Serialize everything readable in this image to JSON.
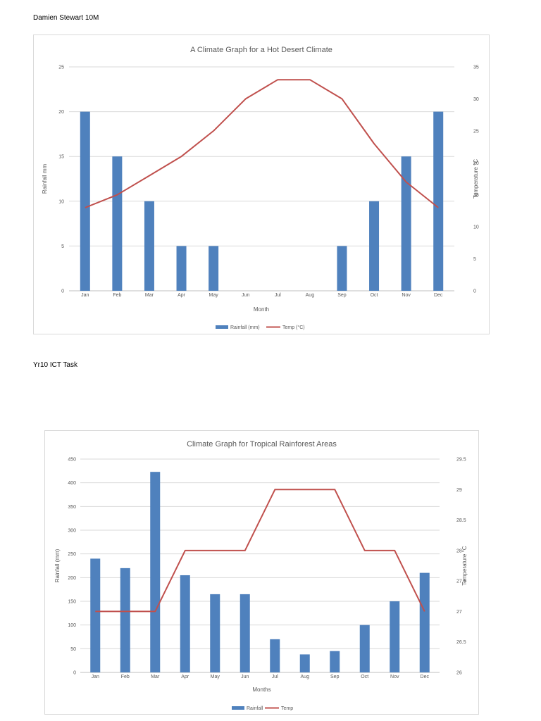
{
  "document": {
    "author_line": "Damien Stewart 10M",
    "task_line": "Yr10 ICT Task"
  },
  "chart_data": [
    {
      "type": "bar",
      "title": "A Climate Graph for a Hot Desert Climate",
      "categories": [
        "Jan",
        "Feb",
        "Mar",
        "Apr",
        "May",
        "Jun",
        "Jul",
        "Aug",
        "Sep",
        "Oct",
        "Nov",
        "Dec"
      ],
      "series": [
        {
          "name": "Rainfall (mm)",
          "type": "bar",
          "axis": "left",
          "color": "#4f81bd",
          "values": [
            20,
            15,
            10,
            5,
            5,
            0,
            0,
            0,
            5,
            10,
            15,
            20
          ]
        },
        {
          "name": "Temp (°C)",
          "type": "line",
          "axis": "right",
          "color": "#c0504d",
          "values": [
            13,
            15,
            18,
            21,
            25,
            30,
            33,
            33,
            30,
            23,
            17,
            13
          ]
        }
      ],
      "xlabel": "Month",
      "ylabel": "Rainfall mm",
      "y2label": "Temperature °C",
      "ylim": [
        0,
        25
      ],
      "yticks": [
        0,
        5,
        10,
        15,
        20,
        25
      ],
      "y2lim": [
        0,
        35
      ],
      "y2ticks": [
        0,
        5,
        10,
        15,
        20,
        25,
        30,
        35
      ],
      "grid": true,
      "legend_position": "bottom"
    },
    {
      "type": "bar",
      "title": "Climate Graph for Tropical Rainforest Areas",
      "categories": [
        "Jan",
        "Feb",
        "Mar",
        "Apr",
        "May",
        "Jun",
        "Jul",
        "Aug",
        "Sep",
        "Oct",
        "Nov",
        "Dec"
      ],
      "series": [
        {
          "name": "Rainfall",
          "type": "bar",
          "axis": "left",
          "color": "#4f81bd",
          "values": [
            240,
            220,
            423,
            205,
            165,
            165,
            70,
            38,
            45,
            100,
            150,
            210
          ]
        },
        {
          "name": "Temp",
          "type": "line",
          "axis": "right",
          "color": "#c0504d",
          "values": [
            27,
            27,
            27,
            28,
            28,
            28,
            29,
            29,
            29,
            28,
            28,
            27
          ]
        }
      ],
      "xlabel": "Months",
      "ylabel": "Rainfall (mm)",
      "y2label": "Temperature °C",
      "ylim": [
        0,
        450
      ],
      "yticks": [
        0,
        50,
        100,
        150,
        200,
        250,
        300,
        350,
        400,
        450
      ],
      "y2lim": [
        26,
        29.5
      ],
      "y2ticks": [
        26,
        26.5,
        27,
        27.5,
        28,
        28.5,
        29,
        29.5
      ],
      "grid": true,
      "legend_position": "bottom"
    }
  ]
}
